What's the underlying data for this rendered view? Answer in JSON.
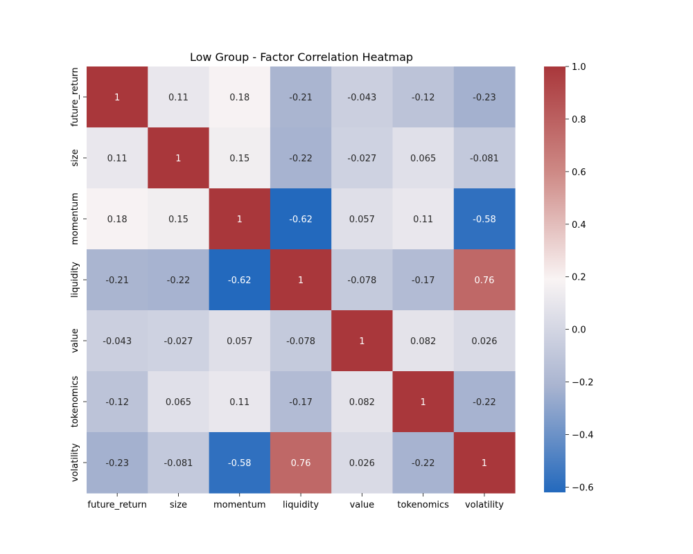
{
  "chart_data": {
    "type": "heatmap",
    "title": "Low Group - Factor Correlation Heatmap",
    "xlabel": "",
    "ylabel": "",
    "x_labels": [
      "future_return",
      "size",
      "momentum",
      "liquidity",
      "value",
      "tokenomics",
      "volatility"
    ],
    "y_labels": [
      "future_return",
      "size",
      "momentum",
      "liquidity",
      "value",
      "tokenomics",
      "volatility"
    ],
    "values": [
      [
        1,
        0.11,
        0.18,
        -0.21,
        -0.043,
        -0.12,
        -0.23
      ],
      [
        0.11,
        1,
        0.15,
        -0.22,
        -0.027,
        0.065,
        -0.081
      ],
      [
        0.18,
        0.15,
        1,
        -0.62,
        0.057,
        0.11,
        -0.58
      ],
      [
        -0.21,
        -0.22,
        -0.62,
        1,
        -0.078,
        -0.17,
        0.76
      ],
      [
        -0.043,
        -0.027,
        0.057,
        -0.078,
        1,
        0.082,
        0.026
      ],
      [
        -0.12,
        0.065,
        0.11,
        -0.17,
        0.082,
        1,
        -0.22
      ],
      [
        -0.23,
        -0.081,
        -0.58,
        0.76,
        0.026,
        -0.22,
        1
      ]
    ],
    "value_labels": [
      [
        "1",
        "0.11",
        "0.18",
        "-0.21",
        "-0.043",
        "-0.12",
        "-0.23"
      ],
      [
        "0.11",
        "1",
        "0.15",
        "-0.22",
        "-0.027",
        "0.065",
        "-0.081"
      ],
      [
        "0.18",
        "0.15",
        "1",
        "-0.62",
        "0.057",
        "0.11",
        "-0.58"
      ],
      [
        "-0.21",
        "-0.22",
        "-0.62",
        "1",
        "-0.078",
        "-0.17",
        "0.76"
      ],
      [
        "-0.043",
        "-0.027",
        "0.057",
        "-0.078",
        "1",
        "0.082",
        "0.026"
      ],
      [
        "-0.12",
        "0.065",
        "0.11",
        "-0.17",
        "0.082",
        "1",
        "-0.22"
      ],
      [
        "-0.23",
        "-0.081",
        "-0.58",
        "0.76",
        "0.026",
        "-0.22",
        "1"
      ]
    ],
    "colorbar": {
      "min": -0.62,
      "max": 1.0,
      "ticks": [
        -0.6,
        -0.4,
        -0.2,
        0.0,
        0.2,
        0.4,
        0.6,
        0.8,
        1.0
      ],
      "tick_labels": [
        "−0.6",
        "−0.4",
        "−0.2",
        "0.0",
        "0.2",
        "0.4",
        "0.6",
        "0.8",
        "1.0"
      ],
      "placement": "right"
    },
    "colormap": {
      "name": "vlag",
      "stops": [
        "#2369bd",
        "#a9b4d0",
        "#f9f4f4",
        "#ce8a86",
        "#a9373b"
      ]
    },
    "grid": false
  }
}
